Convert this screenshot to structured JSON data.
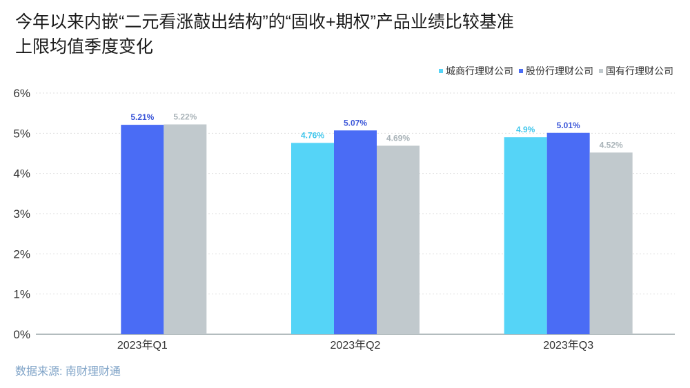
{
  "title_lines": [
    "今年以来内嵌“二元看涨敲出结构”的“固收+期权”产品业绩比较基准",
    "上限均值季度变化"
  ],
  "source": "数据来源: 南财理财通",
  "colors": {
    "城商": "#55d4f7",
    "股份": "#4a6cf5",
    "国有": "#c1c9cd",
    "axis": "#9aa5a8",
    "grid": "#dddddd",
    "text": "#333333"
  },
  "chart_data": {
    "type": "bar",
    "categories": [
      "2023年Q1",
      "2023年Q2",
      "2023年Q3"
    ],
    "series": [
      {
        "name": "城商行理财公司",
        "values": [
          null,
          4.76,
          4.9
        ],
        "labels": [
          "",
          "4.76%",
          "4.9%"
        ],
        "color": "#55d4f7",
        "label_color": "#3fc6ec"
      },
      {
        "name": "股份行理财公司",
        "values": [
          5.21,
          5.07,
          5.01
        ],
        "labels": [
          "5.21%",
          "5.07%",
          "5.01%"
        ],
        "color": "#4a6cf5",
        "label_color": "#3a55d8"
      },
      {
        "name": "国有行理财公司",
        "values": [
          5.22,
          4.69,
          4.52
        ],
        "labels": [
          "5.22%",
          "4.69%",
          "4.52%"
        ],
        "color": "#c1c9cd",
        "label_color": "#a9b3b8"
      }
    ],
    "y_ticks": [
      "0%",
      "1%",
      "2%",
      "3%",
      "4%",
      "5%",
      "6%"
    ],
    "ylim": [
      0,
      6
    ],
    "grid": true,
    "legend_position": "top-right"
  }
}
